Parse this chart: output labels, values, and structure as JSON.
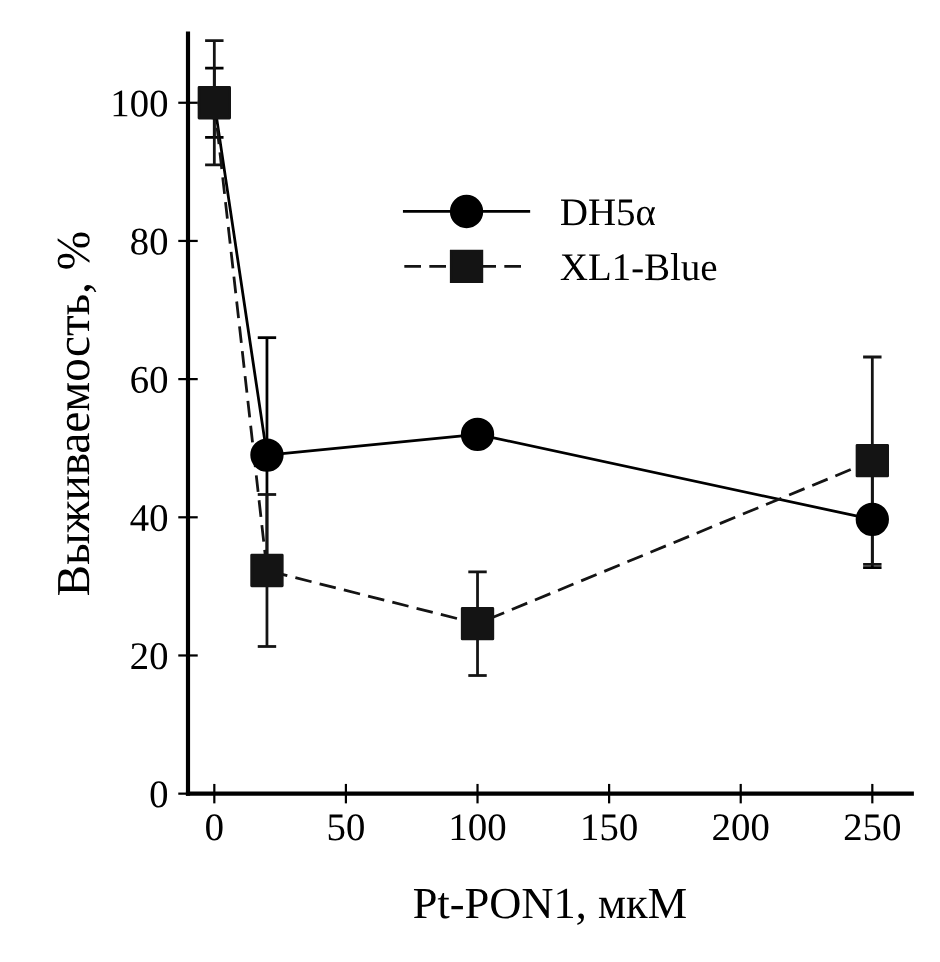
{
  "chart_data": {
    "type": "line",
    "xlabel": "Pt-PON1, мкМ",
    "ylabel": "Выживаемость, %",
    "x": [
      0,
      20,
      100,
      250
    ],
    "series": [
      {
        "name": "DH5α",
        "color": "#000000",
        "marker": "circle",
        "line_style": "solid",
        "values": [
          100,
          49,
          52,
          39.7
        ],
        "errors": [
          5,
          17,
          null,
          7
        ]
      },
      {
        "name": "XL1-Blue",
        "color": "#141414",
        "marker": "square",
        "line_style": "dashed",
        "values": [
          100,
          32.3,
          24.6,
          48.2
        ],
        "errors": [
          9,
          11,
          7.5,
          15
        ]
      }
    ],
    "xlim": [
      -10,
      265
    ],
    "ylim": [
      0,
      110
    ],
    "xticks": [
      0,
      50,
      100,
      150,
      200,
      250
    ],
    "yticks": [
      0,
      20,
      40,
      60,
      80,
      100
    ],
    "legend": "top right",
    "grid": false
  }
}
